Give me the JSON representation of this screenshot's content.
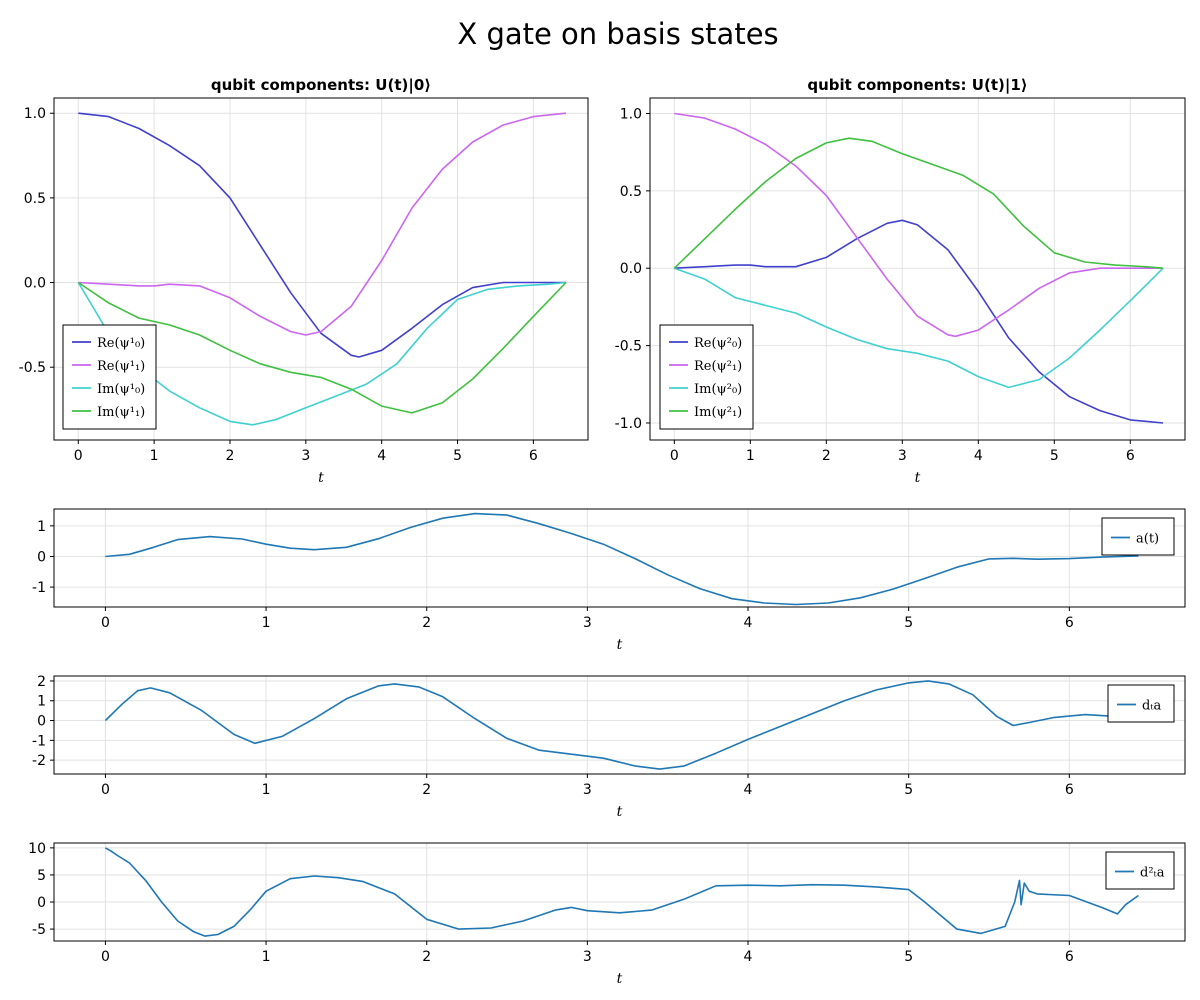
{
  "figure": {
    "title": "X gate on basis states"
  },
  "chart_data": [
    {
      "type": "line",
      "title": "qubit components: U(t)|0⟩",
      "xlabel": "t",
      "ylabel": "",
      "xlim": [
        -0.32,
        6.72
      ],
      "ylim": [
        -0.93,
        1.09
      ],
      "xticks": [
        0,
        1,
        2,
        3,
        4,
        5,
        6
      ],
      "xtick_labels": [
        "0",
        "1",
        "2",
        "3",
        "4",
        "5",
        "6"
      ],
      "yticks": [
        -0.5,
        0.0,
        0.5,
        1.0
      ],
      "ytick_labels": [
        "-0.5",
        "0.0",
        "0.5",
        "1.0"
      ],
      "grid": true,
      "legend_position": "bottom-left",
      "series": [
        {
          "name": "Re(ψ¹₀)",
          "color": "#4040cc",
          "x": [
            0,
            0.4,
            0.8,
            1.2,
            1.6,
            2.0,
            2.4,
            2.8,
            3.2,
            3.6,
            3.7,
            4.0,
            4.4,
            4.8,
            5.2,
            5.6,
            6.0,
            6.43
          ],
          "y": [
            1.0,
            0.98,
            0.91,
            0.81,
            0.69,
            0.5,
            0.22,
            -0.06,
            -0.3,
            -0.43,
            -0.44,
            -0.4,
            -0.27,
            -0.13,
            -0.03,
            0.0,
            0.0,
            0.0
          ]
        },
        {
          "name": "Re(ψ¹₁)",
          "color": "#cc66ee",
          "x": [
            0,
            0.4,
            0.8,
            1.0,
            1.2,
            1.6,
            2.0,
            2.4,
            2.8,
            3.0,
            3.2,
            3.6,
            4.0,
            4.4,
            4.8,
            5.2,
            5.6,
            6.0,
            6.43
          ],
          "y": [
            0.0,
            -0.01,
            -0.02,
            -0.02,
            -0.01,
            -0.02,
            -0.09,
            -0.2,
            -0.29,
            -0.31,
            -0.29,
            -0.14,
            0.13,
            0.44,
            0.67,
            0.83,
            0.93,
            0.98,
            1.0
          ]
        },
        {
          "name": "Im(ψ¹₀)",
          "color": "#40d0d0",
          "x": [
            0,
            0.4,
            0.8,
            1.2,
            1.6,
            2.0,
            2.3,
            2.6,
            3.0,
            3.4,
            3.8,
            4.2,
            4.6,
            5.0,
            5.4,
            5.8,
            6.2,
            6.43
          ],
          "y": [
            0.0,
            -0.3,
            -0.5,
            -0.64,
            -0.74,
            -0.82,
            -0.84,
            -0.81,
            -0.74,
            -0.67,
            -0.6,
            -0.48,
            -0.27,
            -0.1,
            -0.04,
            -0.02,
            -0.01,
            0.0
          ]
        },
        {
          "name": "Im(ψ¹₁)",
          "color": "#40c040",
          "x": [
            0,
            0.4,
            0.8,
            1.2,
            1.6,
            2.0,
            2.4,
            2.8,
            3.2,
            3.6,
            4.0,
            4.4,
            4.8,
            5.2,
            5.6,
            6.0,
            6.43
          ],
          "y": [
            0.0,
            -0.12,
            -0.21,
            -0.25,
            -0.31,
            -0.4,
            -0.48,
            -0.53,
            -0.56,
            -0.63,
            -0.73,
            -0.77,
            -0.71,
            -0.57,
            -0.39,
            -0.2,
            0.0
          ]
        }
      ]
    },
    {
      "type": "line",
      "title": "qubit components: U(t)|1⟩",
      "xlabel": "t",
      "ylabel": "",
      "xlim": [
        -0.32,
        6.72
      ],
      "ylim": [
        -1.11,
        1.1
      ],
      "xticks": [
        0,
        1,
        2,
        3,
        4,
        5,
        6
      ],
      "xtick_labels": [
        "0",
        "1",
        "2",
        "3",
        "4",
        "5",
        "6"
      ],
      "yticks": [
        -1.0,
        -0.5,
        0.0,
        0.5,
        1.0
      ],
      "ytick_labels": [
        "-1.0",
        "-0.5",
        "0.0",
        "0.5",
        "1.0"
      ],
      "grid": true,
      "legend_position": "bottom-left",
      "series": [
        {
          "name": "Re(ψ²₀)",
          "color": "#4040cc",
          "x": [
            0,
            0.4,
            0.8,
            1.0,
            1.2,
            1.6,
            2.0,
            2.4,
            2.8,
            3.0,
            3.2,
            3.6,
            4.0,
            4.4,
            4.8,
            5.2,
            5.6,
            6.0,
            6.43
          ],
          "y": [
            0.0,
            0.01,
            0.02,
            0.02,
            0.01,
            0.01,
            0.07,
            0.19,
            0.29,
            0.31,
            0.28,
            0.12,
            -0.15,
            -0.45,
            -0.67,
            -0.83,
            -0.92,
            -0.98,
            -1.0
          ]
        },
        {
          "name": "Re(ψ²₁)",
          "color": "#cc66ee",
          "x": [
            0,
            0.4,
            0.8,
            1.2,
            1.6,
            2.0,
            2.4,
            2.8,
            3.2,
            3.6,
            3.7,
            4.0,
            4.4,
            4.8,
            5.2,
            5.6,
            6.0,
            6.43
          ],
          "y": [
            1.0,
            0.97,
            0.9,
            0.8,
            0.66,
            0.47,
            0.2,
            -0.07,
            -0.31,
            -0.43,
            -0.44,
            -0.4,
            -0.27,
            -0.13,
            -0.03,
            0.0,
            0.0,
            0.0
          ]
        },
        {
          "name": "Im(ψ²₀)",
          "color": "#40d0d0",
          "x": [
            0,
            0.4,
            0.8,
            1.2,
            1.6,
            2.0,
            2.4,
            2.8,
            3.2,
            3.6,
            4.0,
            4.4,
            4.8,
            5.2,
            5.6,
            6.0,
            6.43
          ],
          "y": [
            0.0,
            -0.07,
            -0.19,
            -0.24,
            -0.29,
            -0.38,
            -0.46,
            -0.52,
            -0.55,
            -0.6,
            -0.7,
            -0.77,
            -0.72,
            -0.58,
            -0.4,
            -0.21,
            0.0
          ]
        },
        {
          "name": "Im(ψ²₁)",
          "color": "#40c040",
          "x": [
            0,
            0.4,
            0.8,
            1.2,
            1.6,
            2.0,
            2.3,
            2.6,
            3.0,
            3.4,
            3.8,
            4.2,
            4.6,
            5.0,
            5.4,
            5.8,
            6.2,
            6.43
          ],
          "y": [
            0.0,
            0.19,
            0.38,
            0.56,
            0.71,
            0.81,
            0.84,
            0.82,
            0.74,
            0.67,
            0.6,
            0.48,
            0.27,
            0.1,
            0.04,
            0.02,
            0.01,
            0.0
          ]
        }
      ]
    },
    {
      "type": "line",
      "title": "",
      "xlabel": "t",
      "ylabel": "",
      "xlim": [
        -0.32,
        6.72
      ],
      "ylim": [
        -1.65,
        1.55
      ],
      "xticks": [
        0,
        1,
        2,
        3,
        4,
        5,
        6
      ],
      "xtick_labels": [
        "0",
        "1",
        "2",
        "3",
        "4",
        "5",
        "6"
      ],
      "yticks": [
        -1,
        0,
        1
      ],
      "ytick_labels": [
        "-1",
        "0",
        "1"
      ],
      "grid": true,
      "legend_position": "top-right",
      "series": [
        {
          "name": "a(t)",
          "color": "#1f77b4",
          "x": [
            0,
            0.15,
            0.3,
            0.45,
            0.65,
            0.85,
            1.0,
            1.15,
            1.3,
            1.5,
            1.7,
            1.9,
            2.1,
            2.3,
            2.5,
            2.7,
            2.9,
            3.1,
            3.3,
            3.5,
            3.7,
            3.9,
            4.1,
            4.3,
            4.5,
            4.7,
            4.9,
            5.1,
            5.3,
            5.5,
            5.65,
            5.8,
            6.0,
            6.2,
            6.43
          ],
          "y": [
            0.0,
            0.07,
            0.3,
            0.55,
            0.65,
            0.57,
            0.4,
            0.27,
            0.22,
            0.3,
            0.58,
            0.95,
            1.25,
            1.4,
            1.35,
            1.07,
            0.75,
            0.4,
            -0.08,
            -0.6,
            -1.05,
            -1.38,
            -1.52,
            -1.57,
            -1.52,
            -1.35,
            -1.07,
            -0.72,
            -0.35,
            -0.08,
            -0.06,
            -0.09,
            -0.07,
            -0.02,
            0.02
          ]
        }
      ]
    },
    {
      "type": "line",
      "title": "",
      "xlabel": "t",
      "ylabel": "",
      "xlim": [
        -0.32,
        6.72
      ],
      "ylim": [
        -2.7,
        2.25
      ],
      "xticks": [
        0,
        1,
        2,
        3,
        4,
        5,
        6
      ],
      "xtick_labels": [
        "0",
        "1",
        "2",
        "3",
        "4",
        "5",
        "6"
      ],
      "yticks": [
        -2,
        -1,
        0,
        1,
        2
      ],
      "ytick_labels": [
        "-2",
        "-1",
        "0",
        "1",
        "2"
      ],
      "grid": true,
      "legend_position": "top-right",
      "series": [
        {
          "name": "dₜa",
          "color": "#1f77b4",
          "x": [
            0,
            0.1,
            0.2,
            0.28,
            0.4,
            0.6,
            0.8,
            0.93,
            1.1,
            1.3,
            1.5,
            1.7,
            1.8,
            1.95,
            2.1,
            2.3,
            2.5,
            2.7,
            2.9,
            3.1,
            3.3,
            3.45,
            3.6,
            3.8,
            4.0,
            4.2,
            4.4,
            4.6,
            4.8,
            5.0,
            5.12,
            5.25,
            5.4,
            5.55,
            5.65,
            5.75,
            5.9,
            6.1,
            6.3,
            6.43
          ],
          "y": [
            0.0,
            0.8,
            1.5,
            1.65,
            1.4,
            0.5,
            -0.7,
            -1.15,
            -0.8,
            0.1,
            1.1,
            1.75,
            1.85,
            1.7,
            1.2,
            0.1,
            -0.9,
            -1.5,
            -1.7,
            -1.9,
            -2.3,
            -2.45,
            -2.3,
            -1.65,
            -0.95,
            -0.3,
            0.35,
            1.0,
            1.55,
            1.9,
            2.0,
            1.85,
            1.3,
            0.2,
            -0.25,
            -0.1,
            0.15,
            0.3,
            0.2,
            0.0
          ]
        }
      ]
    },
    {
      "type": "line",
      "title": "",
      "xlabel": "t",
      "ylabel": "",
      "xlim": [
        -0.32,
        6.72
      ],
      "ylim": [
        -7.2,
        10.9
      ],
      "xticks": [
        0,
        1,
        2,
        3,
        4,
        5,
        6
      ],
      "xtick_labels": [
        "0",
        "1",
        "2",
        "3",
        "4",
        "5",
        "6"
      ],
      "yticks": [
        -5,
        0,
        5,
        10
      ],
      "ytick_labels": [
        "-5",
        "0",
        "5",
        "10"
      ],
      "grid": true,
      "legend_position": "top-right",
      "series": [
        {
          "name": "d²ₜa",
          "color": "#1f77b4",
          "x": [
            0,
            0.03,
            0.08,
            0.15,
            0.25,
            0.35,
            0.45,
            0.55,
            0.62,
            0.7,
            0.8,
            0.9,
            1.0,
            1.15,
            1.3,
            1.45,
            1.6,
            1.8,
            2.0,
            2.2,
            2.4,
            2.6,
            2.8,
            2.9,
            3.0,
            3.2,
            3.4,
            3.6,
            3.8,
            4.0,
            4.2,
            4.4,
            4.6,
            4.8,
            5.0,
            5.1,
            5.3,
            5.45,
            5.6,
            5.66,
            5.69,
            5.7,
            5.72,
            5.75,
            5.8,
            6.0,
            6.2,
            6.3,
            6.35,
            6.43
          ],
          "y": [
            10.0,
            9.5,
            8.5,
            7.2,
            4.0,
            0.0,
            -3.5,
            -5.5,
            -6.3,
            -6.0,
            -4.5,
            -1.5,
            2.0,
            4.3,
            4.8,
            4.5,
            3.8,
            1.5,
            -3.2,
            -5.0,
            -4.8,
            -3.5,
            -1.5,
            -1.0,
            -1.6,
            -2.0,
            -1.5,
            0.5,
            3.0,
            3.1,
            3.0,
            3.2,
            3.1,
            2.8,
            2.3,
            0.0,
            -5.0,
            -5.8,
            -4.5,
            0.0,
            4.0,
            -0.5,
            3.5,
            2.0,
            1.5,
            1.2,
            -1.0,
            -2.2,
            -0.5,
            1.2
          ]
        }
      ]
    }
  ]
}
